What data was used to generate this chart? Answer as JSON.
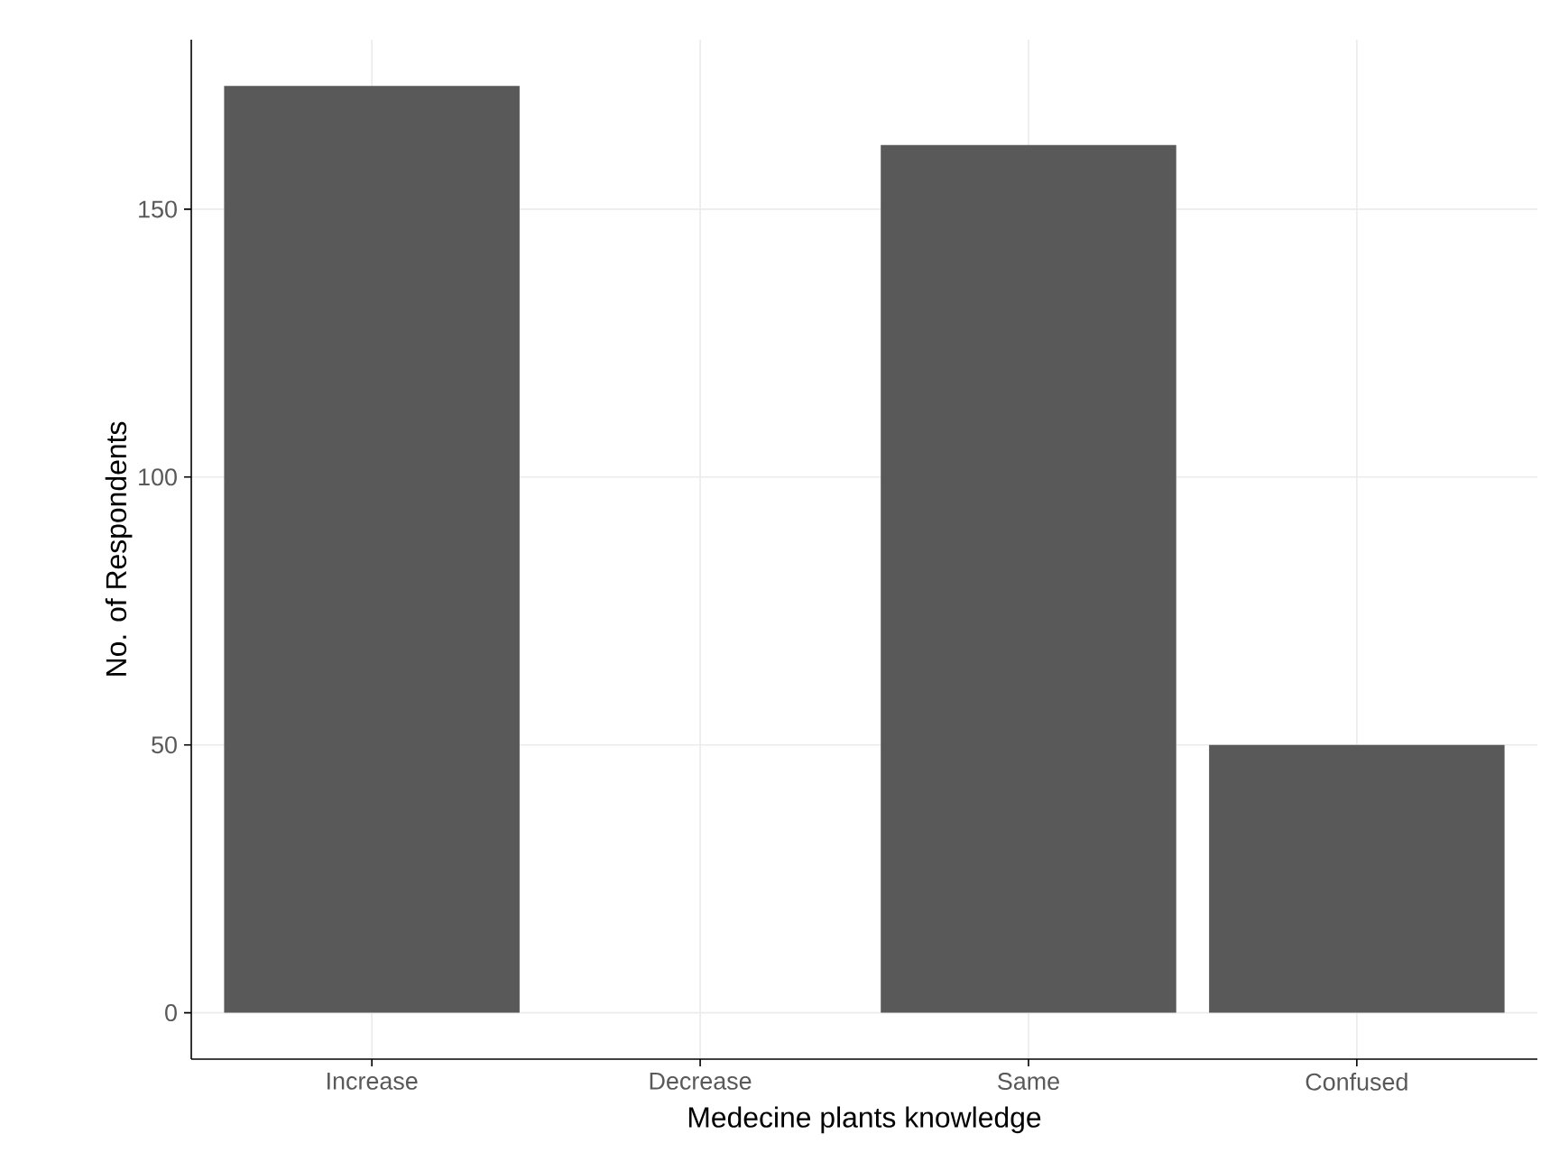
{
  "chart_data": {
    "type": "bar",
    "xlabel": "Medecine plants knowledge",
    "ylabel": "No. of Respondents",
    "categories": [
      "Increase",
      "Decrease",
      "Same",
      "Confused"
    ],
    "values": [
      173,
      0,
      162,
      50
    ],
    "color": "#595959",
    "ylim": [
      -8.65,
      181.65
    ],
    "yticks": [
      0,
      50,
      100,
      150
    ],
    "grid": true
  }
}
